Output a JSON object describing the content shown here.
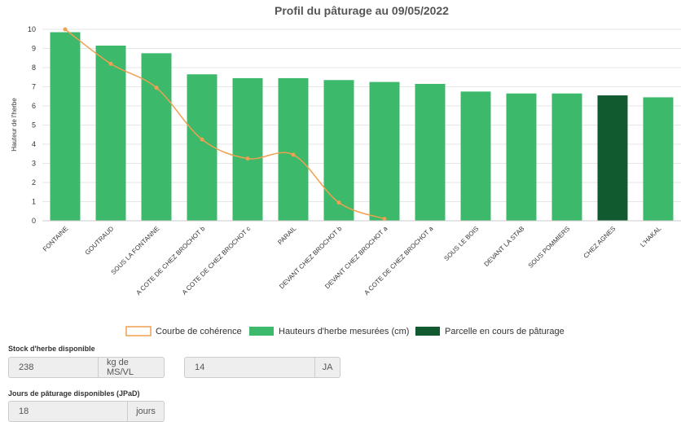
{
  "chart_data": {
    "type": "bar",
    "title": "Profil du pâturage au 09/05/2022",
    "y_label": "Hauteur de l'herbe",
    "categories": [
      "FONTAINE",
      "GOUTRAUD",
      "SOUS LA FONTANNE",
      "A COTE DE CHEZ BROCHOT b",
      "A COTE DE CHEZ BROCHOT c",
      "PARAIL",
      "DEVANT CHEZ BROCHOT b",
      "DEVANT CHEZ BROCHOT a",
      "A COTE DE CHEZ BROCHOT a",
      "SOUS LE BOIS",
      "DEVANT LA STAB",
      "SOUS POMMIERS",
      "CHEZ AGNES",
      "L'HAKAL"
    ],
    "series": [
      {
        "name": "Courbe de cohérence",
        "type": "line",
        "color": "#f0a050",
        "values": [
          10,
          8.2,
          6.95,
          4.25,
          3.25,
          3.45,
          0.95,
          0.1,
          null,
          null,
          null,
          null,
          null,
          null
        ]
      },
      {
        "name": "Hauteurs d'herbe mesurées (cm)",
        "type": "bar",
        "color": "#3cb96b",
        "values": [
          9.85,
          9.15,
          8.75,
          7.65,
          7.45,
          7.45,
          7.35,
          7.25,
          7.15,
          6.75,
          6.65,
          6.65,
          null,
          6.45
        ]
      },
      {
        "name": "Parcelle en cours de pâturage",
        "type": "bar",
        "color": "#11592f",
        "values": [
          null,
          null,
          null,
          null,
          null,
          null,
          null,
          null,
          null,
          null,
          null,
          null,
          6.55,
          null
        ]
      }
    ],
    "ylim": [
      0,
      10
    ],
    "yticks": [
      0,
      1,
      2,
      3,
      4,
      5,
      6,
      7,
      8,
      9,
      10
    ],
    "grid": true
  },
  "form": {
    "stock_label": "Stock d'herbe disponible",
    "stock_value": 238,
    "stock_unit": "kg de MS/VL",
    "ja_value": 14,
    "ja_unit": "JA",
    "jpad_label": "Jours de pâturage disponibles (JPaD)",
    "jpad_value": 18,
    "jpad_unit": "jours"
  }
}
